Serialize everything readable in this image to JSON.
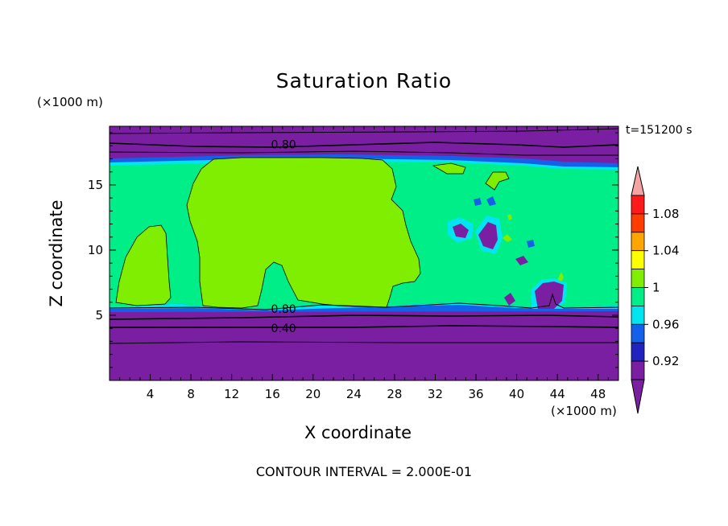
{
  "chart_data": {
    "type": "contour",
    "title": "Saturation Ratio",
    "xlabel": "X coordinate",
    "ylabel": "Z coordinate",
    "x_unit": "(×1000 m)",
    "y_unit": "(×1000 m)",
    "time": "t=151200 s",
    "xlim": [
      0,
      50
    ],
    "ylim": [
      0,
      19.5
    ],
    "x_ticks": [
      "4",
      "8",
      "12",
      "16",
      "20",
      "24",
      "28",
      "32",
      "36",
      "40",
      "44",
      "48"
    ],
    "x_tick_values": [
      4,
      8,
      12,
      16,
      20,
      24,
      28,
      32,
      36,
      40,
      44,
      48
    ],
    "y_ticks": [
      "5",
      "10",
      "15"
    ],
    "y_tick_values": [
      5,
      10,
      15
    ],
    "contour_labels": [
      {
        "text": "0.80",
        "x": 17.1,
        "z": 18.1
      },
      {
        "text": "0.80",
        "x": 17.1,
        "z": 5.5
      },
      {
        "text": "0.40",
        "x": 17.1,
        "z": 4.0
      }
    ],
    "footer": "CONTOUR INTERVAL = 2.000E-01",
    "colorbar": {
      "tick_labels": [
        "1.08",
        "1.04",
        "1",
        "0.96",
        "0.92"
      ],
      "tick_values": [
        1.08,
        1.04,
        1.0,
        0.96,
        0.92
      ],
      "levels": [
        0.91,
        0.92,
        0.94,
        0.96,
        0.98,
        1.0,
        1.02,
        1.04,
        1.06,
        1.08,
        1.1
      ],
      "colors": [
        "#7b1fa2",
        "#2222c0",
        "#1560e8",
        "#00e5ef",
        "#00ee88",
        "#7fee00",
        "#ffff00",
        "#ffa500",
        "#ff3b00",
        "#ff1a1a"
      ],
      "colors_meta": {
        "below": "#7b1fa2",
        "above": "#f5a3a3"
      }
    },
    "fields": {
      "purple": "#7b1fa2",
      "dark_blue": "#2222c0",
      "blue": "#1560e8",
      "cyan": "#00e5ef",
      "green": "#00ee88",
      "lime": "#7fee00"
    }
  }
}
